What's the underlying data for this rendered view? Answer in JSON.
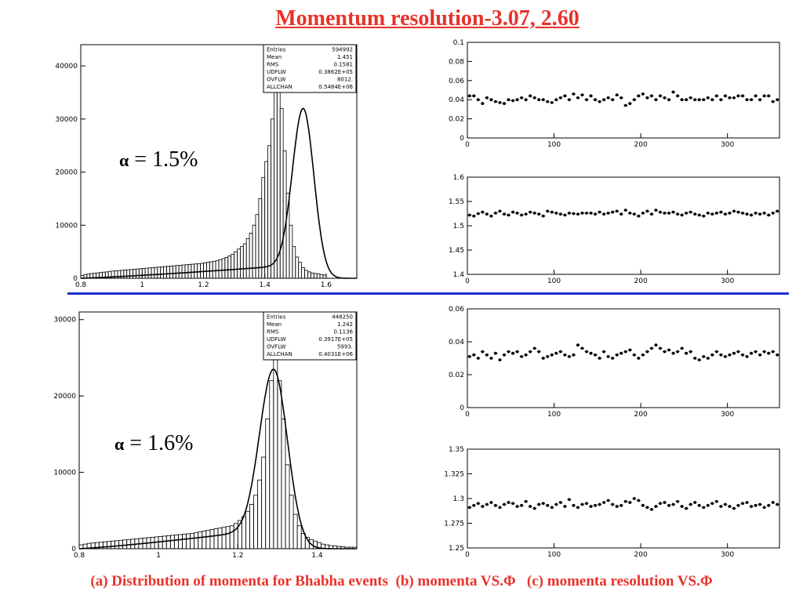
{
  "title": "Momentum resolution-3.07, 2.60",
  "caption": "(a) Distribution of momenta for Bhabha events  (b) momenta VS.Φ   (c) momenta resolution VS.Φ",
  "colors": {
    "title": "#e8322a",
    "divider": "#1f2fd0",
    "axes": "#000000"
  },
  "annotations": [
    {
      "symbol": "α",
      "text": " = 1.5%"
    },
    {
      "symbol": "α",
      "text": " = 1.6%"
    }
  ],
  "chart_data": [
    {
      "type": "histogram",
      "id": "top-hist",
      "xlim": [
        0.8,
        1.7
      ],
      "ylim": [
        0,
        44000
      ],
      "xticks": [
        "0.8",
        "1",
        "1.2",
        "1.4",
        "1.6"
      ],
      "xtick_values": [
        0.8,
        1.0,
        1.2,
        1.4,
        1.6
      ],
      "yticks": [
        "0",
        "10000",
        "20000",
        "30000",
        "40000"
      ],
      "ytick_values": [
        0,
        10000,
        20000,
        30000,
        40000
      ],
      "bin_width": 0.01,
      "hist_values": [
        500,
        700,
        800,
        900,
        950,
        1000,
        1100,
        1150,
        1200,
        1300,
        1350,
        1400,
        1450,
        1500,
        1550,
        1600,
        1650,
        1700,
        1750,
        1800,
        1850,
        1900,
        1950,
        2000,
        2050,
        2100,
        2150,
        2200,
        2250,
        2300,
        2350,
        2400,
        2450,
        2500,
        2550,
        2600,
        2650,
        2700,
        2750,
        2800,
        2900,
        3000,
        3100,
        3200,
        3300,
        3500,
        3700,
        3900,
        4200,
        4500,
        5000,
        5500,
        6000,
        6500,
        7500,
        8500,
        10000,
        12000,
        15000,
        19000,
        22000,
        25000,
        30000,
        36000,
        38000,
        32000,
        24000,
        16000,
        10000,
        6000,
        4000,
        3000,
        2000,
        1500,
        1200,
        1000,
        900,
        800,
        700,
        600
      ],
      "fit_mean": 1.525,
      "fit_peak": 32000,
      "stats": [
        [
          "Entries",
          "594992"
        ],
        [
          "Mean",
          "1.451"
        ],
        [
          "RMS",
          "0.1581"
        ],
        [
          "UDFLW",
          "0.3862E+05"
        ],
        [
          "OVFLW",
          "8012."
        ],
        [
          "ALLCHAN",
          "0.5484E+06"
        ]
      ]
    },
    {
      "type": "scatter",
      "id": "top-res",
      "xlim": [
        0,
        360
      ],
      "ylim": [
        0,
        0.1
      ],
      "xticks": [
        "0",
        "100",
        "200",
        "300"
      ],
      "xtick_values": [
        0,
        100,
        200,
        300
      ],
      "yticks": [
        "0",
        "0.02",
        "0.04",
        "0.06",
        "0.08",
        "0.1"
      ],
      "ytick_values": [
        0,
        0.02,
        0.04,
        0.06,
        0.08,
        0.1
      ],
      "x_step": 5,
      "y": [
        0.044,
        0.044,
        0.04,
        0.036,
        0.042,
        0.04,
        0.038,
        0.037,
        0.036,
        0.04,
        0.039,
        0.04,
        0.042,
        0.04,
        0.044,
        0.042,
        0.04,
        0.04,
        0.038,
        0.037,
        0.04,
        0.042,
        0.044,
        0.04,
        0.046,
        0.042,
        0.045,
        0.04,
        0.044,
        0.04,
        0.038,
        0.04,
        0.042,
        0.04,
        0.045,
        0.042,
        0.034,
        0.036,
        0.04,
        0.044,
        0.046,
        0.042,
        0.044,
        0.04,
        0.044,
        0.042,
        0.04,
        0.048,
        0.044,
        0.04,
        0.04,
        0.042,
        0.04,
        0.04,
        0.04,
        0.042,
        0.04,
        0.044,
        0.04,
        0.044,
        0.042,
        0.042,
        0.044,
        0.044,
        0.04,
        0.04,
        0.044,
        0.04,
        0.044,
        0.044,
        0.038,
        0.04
      ]
    },
    {
      "type": "scatter",
      "id": "top-mom",
      "xlim": [
        0,
        360
      ],
      "ylim": [
        1.4,
        1.6
      ],
      "xticks": [
        "0",
        "100",
        "200",
        "300"
      ],
      "xtick_values": [
        0,
        100,
        200,
        300
      ],
      "yticks": [
        "1.4",
        "1.45",
        "1.5",
        "1.55",
        "1.6"
      ],
      "ytick_values": [
        1.4,
        1.45,
        1.5,
        1.55,
        1.6
      ],
      "x_step": 5,
      "y": [
        1.522,
        1.52,
        1.525,
        1.528,
        1.524,
        1.52,
        1.526,
        1.53,
        1.524,
        1.522,
        1.528,
        1.526,
        1.522,
        1.524,
        1.528,
        1.526,
        1.524,
        1.52,
        1.53,
        1.528,
        1.526,
        1.524,
        1.522,
        1.526,
        1.525,
        1.524,
        1.526,
        1.526,
        1.526,
        1.524,
        1.528,
        1.524,
        1.526,
        1.528,
        1.53,
        1.524,
        1.532,
        1.526,
        1.524,
        1.52,
        1.526,
        1.53,
        1.524,
        1.532,
        1.528,
        1.526,
        1.526,
        1.528,
        1.524,
        1.522,
        1.526,
        1.528,
        1.524,
        1.522,
        1.52,
        1.526,
        1.524,
        1.526,
        1.528,
        1.524,
        1.526,
        1.53,
        1.528,
        1.526,
        1.524,
        1.522,
        1.526,
        1.524,
        1.526,
        1.522,
        1.526,
        1.53
      ]
    },
    {
      "type": "histogram",
      "id": "bottom-hist",
      "xlim": [
        0.8,
        1.5
      ],
      "ylim": [
        0,
        31000
      ],
      "xticks": [
        "0.8",
        "1",
        "1.2",
        "1.4"
      ],
      "xtick_values": [
        0.8,
        1.0,
        1.2,
        1.4
      ],
      "yticks": [
        "0",
        "10000",
        "20000",
        "30000"
      ],
      "ytick_values": [
        0,
        10000,
        20000,
        30000
      ],
      "bin_width": 0.01,
      "hist_values": [
        500,
        600,
        700,
        750,
        800,
        850,
        900,
        950,
        1000,
        1050,
        1100,
        1150,
        1200,
        1250,
        1300,
        1350,
        1400,
        1450,
        1500,
        1550,
        1600,
        1650,
        1700,
        1750,
        1800,
        1850,
        1900,
        1950,
        2000,
        2100,
        2200,
        2300,
        2400,
        2500,
        2600,
        2700,
        2800,
        2900,
        3000,
        3300,
        3700,
        4200,
        4900,
        5800,
        7000,
        9000,
        12000,
        17000,
        22000,
        25000,
        22000,
        17000,
        11000,
        7000,
        4500,
        3000,
        2000,
        1500,
        1200,
        1000,
        800,
        600,
        500,
        400,
        350,
        300,
        250,
        200,
        200,
        200
      ],
      "fit_mean": 1.29,
      "fit_peak": 23500,
      "stats": [
        [
          "Entries",
          "448250"
        ],
        [
          "Mean",
          "1.242"
        ],
        [
          "RMS",
          "0.1136"
        ],
        [
          "UDFLW",
          "0.3917E+05"
        ],
        [
          "OVFLW",
          "5993."
        ],
        [
          "ALLCHAN",
          "0.4031E+06"
        ]
      ]
    },
    {
      "type": "scatter",
      "id": "bottom-res",
      "xlim": [
        0,
        360
      ],
      "ylim": [
        0,
        0.06
      ],
      "xticks": [
        "0",
        "100",
        "200",
        "300"
      ],
      "xtick_values": [
        0,
        100,
        200,
        300
      ],
      "yticks": [
        "0",
        "0.02",
        "0.04",
        "0.06"
      ],
      "ytick_values": [
        0,
        0.02,
        0.04,
        0.06
      ],
      "x_step": 5,
      "y": [
        0.031,
        0.032,
        0.03,
        0.034,
        0.032,
        0.03,
        0.033,
        0.029,
        0.032,
        0.034,
        0.033,
        0.034,
        0.031,
        0.032,
        0.034,
        0.036,
        0.034,
        0.03,
        0.031,
        0.032,
        0.033,
        0.034,
        0.032,
        0.031,
        0.032,
        0.038,
        0.036,
        0.034,
        0.033,
        0.032,
        0.03,
        0.034,
        0.031,
        0.03,
        0.032,
        0.033,
        0.034,
        0.035,
        0.032,
        0.03,
        0.032,
        0.034,
        0.036,
        0.038,
        0.036,
        0.034,
        0.035,
        0.033,
        0.034,
        0.036,
        0.033,
        0.034,
        0.03,
        0.029,
        0.031,
        0.03,
        0.032,
        0.034,
        0.032,
        0.031,
        0.032,
        0.033,
        0.034,
        0.032,
        0.031,
        0.033,
        0.034,
        0.032,
        0.034,
        0.033,
        0.034,
        0.032
      ]
    },
    {
      "type": "scatter",
      "id": "bottom-mom",
      "xlim": [
        0,
        360
      ],
      "ylim": [
        1.25,
        1.35
      ],
      "xticks": [
        "0",
        "100",
        "200",
        "300"
      ],
      "xtick_values": [
        0,
        100,
        200,
        300
      ],
      "yticks": [
        "1.25",
        "1.275",
        "1.3",
        "1.325",
        "1.35"
      ],
      "ytick_values": [
        1.25,
        1.275,
        1.3,
        1.325,
        1.35
      ],
      "x_step": 5,
      "y": [
        1.291,
        1.293,
        1.295,
        1.292,
        1.294,
        1.296,
        1.293,
        1.291,
        1.294,
        1.296,
        1.295,
        1.292,
        1.293,
        1.297,
        1.292,
        1.29,
        1.294,
        1.295,
        1.293,
        1.291,
        1.294,
        1.296,
        1.292,
        1.299,
        1.293,
        1.291,
        1.294,
        1.295,
        1.292,
        1.293,
        1.294,
        1.296,
        1.298,
        1.294,
        1.292,
        1.293,
        1.297,
        1.296,
        1.3,
        1.298,
        1.293,
        1.291,
        1.289,
        1.292,
        1.295,
        1.296,
        1.293,
        1.294,
        1.297,
        1.292,
        1.29,
        1.294,
        1.296,
        1.293,
        1.291,
        1.293,
        1.295,
        1.297,
        1.292,
        1.294,
        1.292,
        1.29,
        1.293,
        1.295,
        1.296,
        1.292,
        1.293,
        1.294,
        1.291,
        1.293,
        1.296,
        1.294
      ]
    }
  ]
}
